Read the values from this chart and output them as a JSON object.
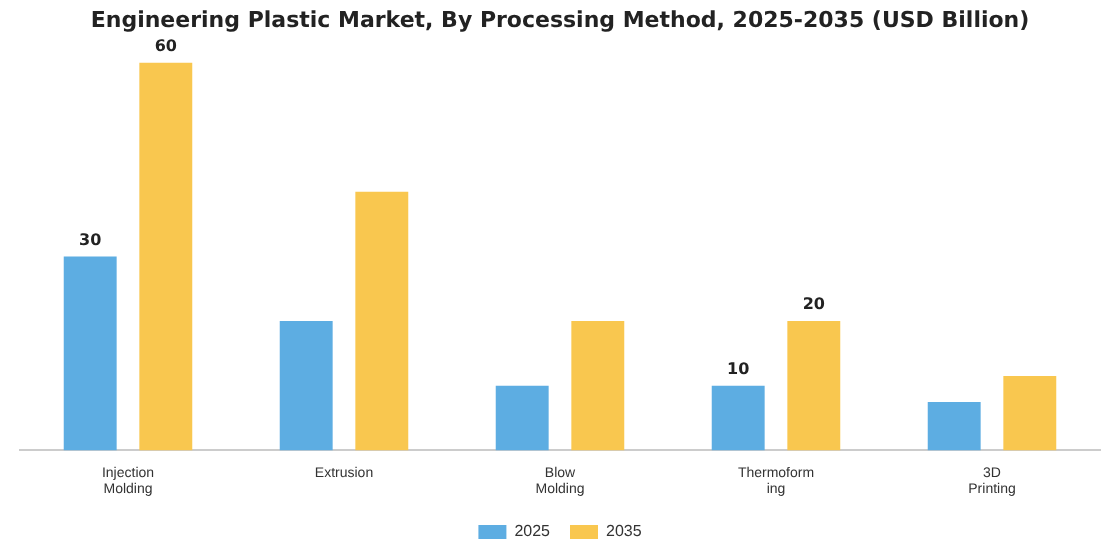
{
  "chart_data": {
    "type": "bar",
    "title": "Engineering Plastic Market, By Processing Method, 2025-2035 (USD Billion)",
    "categories": [
      "Injection\nMolding",
      "Extrusion",
      "Blow\nMolding",
      "Thermoform\ning",
      "3D\nPrinting"
    ],
    "series": [
      {
        "name": "2025",
        "color": "#5dade2",
        "values": [
          30,
          20,
          10,
          10,
          7.5
        ],
        "value_labels": [
          "30",
          null,
          null,
          "10",
          null
        ]
      },
      {
        "name": "2035",
        "color": "#f9c74f",
        "values": [
          60,
          40,
          20,
          20,
          11.5
        ],
        "value_labels": [
          "60",
          null,
          null,
          "20",
          null
        ]
      }
    ],
    "legend": "bottom",
    "grid": false
  }
}
